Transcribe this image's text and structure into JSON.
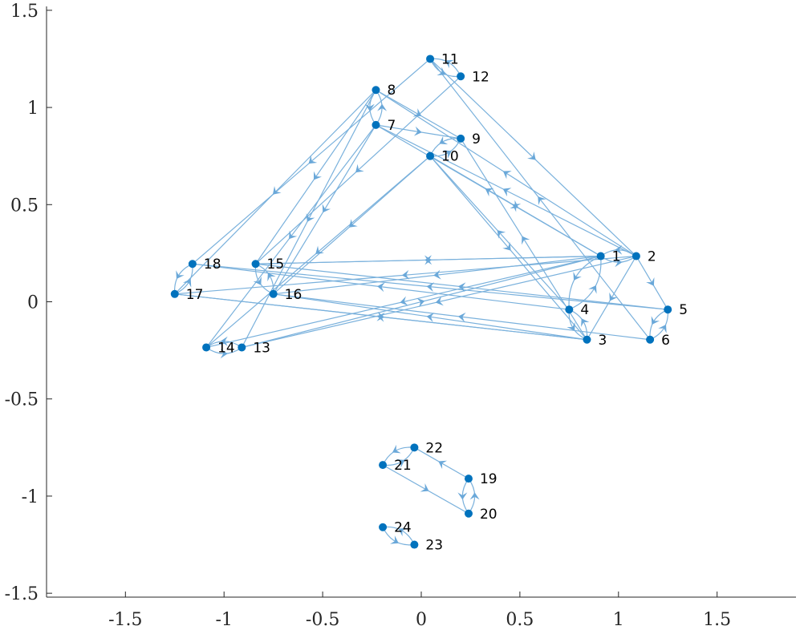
{
  "chart_data": {
    "type": "graph",
    "title": "",
    "xlabel": "",
    "ylabel": "",
    "xlim": [
      -1.9,
      1.9
    ],
    "ylim": [
      -1.52,
      1.52
    ],
    "x_ticks": [
      {
        "v": -1.5,
        "label": "-1.5"
      },
      {
        "v": -1,
        "label": "-1"
      },
      {
        "v": -0.5,
        "label": "-0.5"
      },
      {
        "v": 0,
        "label": "0"
      },
      {
        "v": 0.5,
        "label": "0.5"
      },
      {
        "v": 1,
        "label": "1"
      },
      {
        "v": 1.5,
        "label": "1.5"
      }
    ],
    "y_ticks": [
      {
        "v": 1.5,
        "label": "1.5"
      },
      {
        "v": 1,
        "label": "1"
      },
      {
        "v": 0.5,
        "label": "0.5"
      },
      {
        "v": 0,
        "label": "0"
      },
      {
        "v": -0.5,
        "label": "-0.5"
      },
      {
        "v": -1,
        "label": "-1"
      },
      {
        "v": -1.5,
        "label": "-1.5"
      }
    ],
    "node_color": "#0072bd",
    "edge_color": "#7ab1dc",
    "nodes": [
      {
        "id": "1",
        "x": 0.91,
        "y": 0.235
      },
      {
        "id": "2",
        "x": 1.09,
        "y": 0.235
      },
      {
        "id": "3",
        "x": 0.84,
        "y": -0.195
      },
      {
        "id": "4",
        "x": 0.75,
        "y": -0.04
      },
      {
        "id": "5",
        "x": 1.25,
        "y": -0.04
      },
      {
        "id": "6",
        "x": 1.16,
        "y": -0.195
      },
      {
        "id": "7",
        "x": -0.23,
        "y": 0.91
      },
      {
        "id": "8",
        "x": -0.23,
        "y": 1.09
      },
      {
        "id": "9",
        "x": 0.2,
        "y": 0.84
      },
      {
        "id": "10",
        "x": 0.045,
        "y": 0.75
      },
      {
        "id": "11",
        "x": 0.045,
        "y": 1.25
      },
      {
        "id": "12",
        "x": 0.2,
        "y": 1.16
      },
      {
        "id": "13",
        "x": -0.91,
        "y": -0.235
      },
      {
        "id": "14",
        "x": -1.09,
        "y": -0.235
      },
      {
        "id": "15",
        "x": -0.84,
        "y": 0.195
      },
      {
        "id": "16",
        "x": -0.75,
        "y": 0.04
      },
      {
        "id": "17",
        "x": -1.25,
        "y": 0.04
      },
      {
        "id": "18",
        "x": -1.16,
        "y": 0.195
      },
      {
        "id": "19",
        "x": 0.24,
        "y": -0.91
      },
      {
        "id": "20",
        "x": 0.24,
        "y": -1.09
      },
      {
        "id": "21",
        "x": -0.195,
        "y": -0.84
      },
      {
        "id": "22",
        "x": -0.035,
        "y": -0.75
      },
      {
        "id": "23",
        "x": -0.035,
        "y": -1.25
      },
      {
        "id": "24",
        "x": -0.195,
        "y": -1.16
      }
    ],
    "edges": [
      [
        "1",
        "2"
      ],
      [
        "2",
        "1"
      ],
      [
        "1",
        "4"
      ],
      [
        "4",
        "1"
      ],
      [
        "1",
        "15"
      ],
      [
        "1",
        "16"
      ],
      [
        "1",
        "7"
      ],
      [
        "1",
        "14"
      ],
      [
        "1",
        "10"
      ],
      [
        "2",
        "5"
      ],
      [
        "2",
        "3"
      ],
      [
        "2",
        "7"
      ],
      [
        "2",
        "17"
      ],
      [
        "2",
        "8"
      ],
      [
        "2",
        "13"
      ],
      [
        "3",
        "4"
      ],
      [
        "4",
        "3"
      ],
      [
        "3",
        "9"
      ],
      [
        "3",
        "17"
      ],
      [
        "3",
        "16"
      ],
      [
        "4",
        "10"
      ],
      [
        "4",
        "18"
      ],
      [
        "5",
        "6"
      ],
      [
        "6",
        "5"
      ],
      [
        "5",
        "18"
      ],
      [
        "5",
        "15"
      ],
      [
        "6",
        "11"
      ],
      [
        "6",
        "16"
      ],
      [
        "7",
        "8"
      ],
      [
        "8",
        "7"
      ],
      [
        "7",
        "14"
      ],
      [
        "7",
        "9"
      ],
      [
        "7",
        "16"
      ],
      [
        "8",
        "13"
      ],
      [
        "8",
        "9"
      ],
      [
        "8",
        "17"
      ],
      [
        "8",
        "15"
      ],
      [
        "9",
        "10"
      ],
      [
        "10",
        "9"
      ],
      [
        "10",
        "1"
      ],
      [
        "10",
        "16"
      ],
      [
        "10",
        "14"
      ],
      [
        "10",
        "3"
      ],
      [
        "11",
        "12"
      ],
      [
        "12",
        "11"
      ],
      [
        "11",
        "18"
      ],
      [
        "11",
        "2"
      ],
      [
        "12",
        "15"
      ],
      [
        "13",
        "14"
      ],
      [
        "14",
        "13"
      ],
      [
        "13",
        "1"
      ],
      [
        "15",
        "16"
      ],
      [
        "16",
        "15"
      ],
      [
        "15",
        "1"
      ],
      [
        "17",
        "18"
      ],
      [
        "18",
        "17"
      ],
      [
        "17",
        "3"
      ],
      [
        "19",
        "20"
      ],
      [
        "20",
        "19"
      ],
      [
        "19",
        "22"
      ],
      [
        "21",
        "22"
      ],
      [
        "22",
        "21"
      ],
      [
        "21",
        "20"
      ],
      [
        "23",
        "24"
      ],
      [
        "24",
        "23"
      ]
    ]
  }
}
